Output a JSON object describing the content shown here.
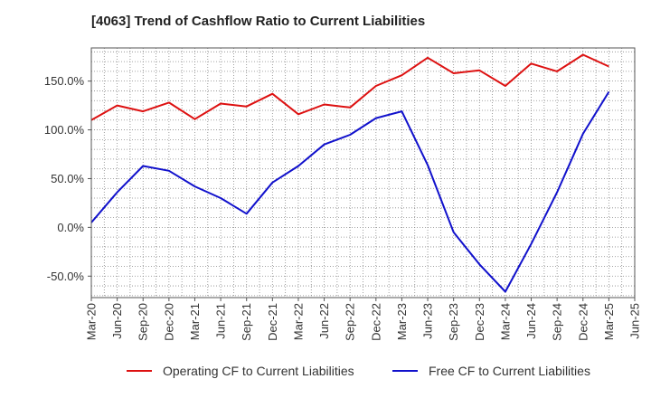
{
  "title": "[4063]  Trend of Cashflow Ratio to Current Liabilities",
  "chart_data": {
    "type": "line",
    "title": "[4063]  Trend of Cashflow Ratio to Current Liabilities",
    "xlabel": "",
    "ylabel": "",
    "categories": [
      "Mar-20",
      "Jun-20",
      "Sep-20",
      "Dec-20",
      "Mar-21",
      "Jun-21",
      "Sep-21",
      "Dec-21",
      "Mar-22",
      "Jun-22",
      "Sep-22",
      "Dec-22",
      "Mar-23",
      "Jun-23",
      "Sep-23",
      "Dec-23",
      "Mar-24",
      "Jun-24",
      "Sep-24",
      "Dec-24",
      "Mar-25",
      "Jun-25"
    ],
    "ylim": [
      -72,
      184
    ],
    "yticks": [
      -50,
      0,
      50,
      100,
      150
    ],
    "ytick_labels": [
      "-50.0%",
      "0.0%",
      "50.0%",
      "100.0%",
      "150.0%"
    ],
    "grid": true,
    "legend_position": "bottom",
    "series": [
      {
        "name": "Operating CF to Current Liabilities",
        "color": "#dd1111",
        "values": [
          110,
          125,
          119,
          128,
          111,
          127,
          124,
          137,
          116,
          126,
          123,
          145,
          156,
          174,
          158,
          161,
          145,
          168,
          160,
          177,
          165,
          null
        ]
      },
      {
        "name": "Free CF to Current Liabilities",
        "color": "#1111cc",
        "values": [
          5,
          36,
          63,
          58,
          42,
          30,
          14,
          46,
          63,
          85,
          95,
          112,
          119,
          64,
          -5,
          -38,
          -66,
          -17,
          36,
          96,
          139,
          null
        ]
      }
    ]
  }
}
